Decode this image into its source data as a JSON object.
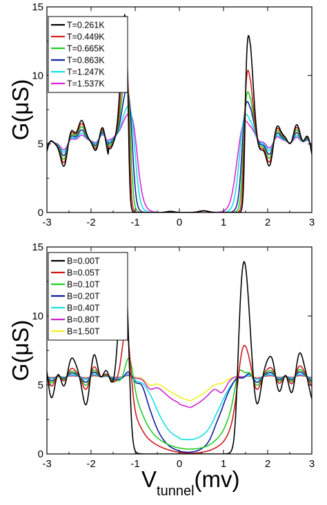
{
  "chart_data": [
    {
      "type": "line",
      "title": "",
      "ylabel": "G(μS)",
      "xlabel": "",
      "xlim": [
        -3,
        3
      ],
      "ylim": [
        0,
        15
      ],
      "xticks": [
        "-3",
        "-2",
        "-1",
        "0",
        "1",
        "2",
        "3"
      ],
      "yticks": [
        "0",
        "5",
        "10",
        "15"
      ],
      "legend_position": "top-left",
      "series": [
        {
          "name": "T=0.261K",
          "color": "#000000",
          "peak": 14.8,
          "rpeak": 13.6,
          "lowout": 0.0,
          "eL": 1.15,
          "eR": 1.48,
          "w": 0.02,
          "dev": 1.0,
          "outer": 1.0
        },
        {
          "name": "T=0.449K",
          "color": "#d42020",
          "peak": 12.6,
          "rpeak": 11.2,
          "lowout": 0.0,
          "eL": 1.13,
          "eR": 1.46,
          "w": 0.025,
          "dev": 0.85,
          "outer": 1.0
        },
        {
          "name": "T=0.665K",
          "color": "#22cc22",
          "peak": 11.0,
          "rpeak": 9.9,
          "lowout": 0.0,
          "eL": 1.1,
          "eR": 1.44,
          "w": 0.035,
          "dev": 0.7,
          "outer": 1.0
        },
        {
          "name": "T=0.863K",
          "color": "#1020a0",
          "peak": 10.1,
          "rpeak": 9.4,
          "lowout": 0.0,
          "eL": 1.06,
          "eR": 1.41,
          "w": 0.045,
          "dev": 0.55,
          "outer": 1.0
        },
        {
          "name": "T=1.247K",
          "color": "#10e0e0",
          "peak": 9.0,
          "rpeak": 8.6,
          "lowout": 0.0,
          "eL": 1.0,
          "eR": 1.35,
          "w": 0.06,
          "dev": 0.4,
          "outer": 1.0
        },
        {
          "name": "T=1.537K",
          "color": "#dd22dd",
          "peak": 8.6,
          "rpeak": 8.2,
          "lowout": 0.0,
          "eL": 0.95,
          "eR": 1.3,
          "w": 0.075,
          "dev": 0.3,
          "outer": 1.0
        }
      ]
    },
    {
      "type": "line",
      "title": "",
      "ylabel": "G(μS)",
      "xlabel": "V",
      "xlabel_sub": "tunnel",
      "xlabel_unit": "(mv)",
      "xlim": [
        -3,
        3
      ],
      "ylim": [
        0,
        15
      ],
      "xticks": [
        "-3",
        "-2",
        "-1",
        "0",
        "1",
        "2",
        "3"
      ],
      "yticks": [
        "0",
        "5",
        "10",
        "15"
      ],
      "legend_position": "top-left",
      "series": [
        {
          "name": "B=0.00T",
          "color": "#000000",
          "peak": 14.5,
          "rpeak": 14.1,
          "gapmin": 0.0,
          "eL": 1.12,
          "eR": 1.3,
          "dev": 1.0
        },
        {
          "name": "B=0.05T",
          "color": "#cc1818",
          "peak": 9.9,
          "rpeak": 9.1,
          "gapmin": 0.05,
          "eL": 1.05,
          "eR": 1.28,
          "dev": 0.45
        },
        {
          "name": "B=0.10T",
          "color": "#22cc22",
          "peak": 7.3,
          "rpeak": 7.0,
          "gapmin": 0.35,
          "eL": 0.95,
          "eR": 1.2,
          "dev": 0.3
        },
        {
          "name": "B=0.20T",
          "color": "#0a1aa0",
          "peak": 6.1,
          "rpeak": 5.7,
          "gapmin": 0.1,
          "eL": 0.7,
          "eR": 0.95,
          "dev": 0.2
        },
        {
          "name": "B=0.40T",
          "color": "#10e0e0",
          "peak": 5.6,
          "rpeak": 5.6,
          "gapmin": 1.0,
          "eL": 0.6,
          "eR": 0.95,
          "dev": 0.1
        },
        {
          "name": "B=0.80T",
          "color": "#cc22cc",
          "peak": 4.8,
          "rpeak": 4.6,
          "gapmin": 3.3,
          "eL": 0.5,
          "eR": 0.8,
          "dev": 0.05
        },
        {
          "name": "B=1.50T",
          "color": "#f0f020",
          "peak": 5.0,
          "rpeak": 5.3,
          "gapmin": 3.8,
          "eL": 0.5,
          "eR": 0.8,
          "dev": 0.03
        }
      ]
    }
  ]
}
